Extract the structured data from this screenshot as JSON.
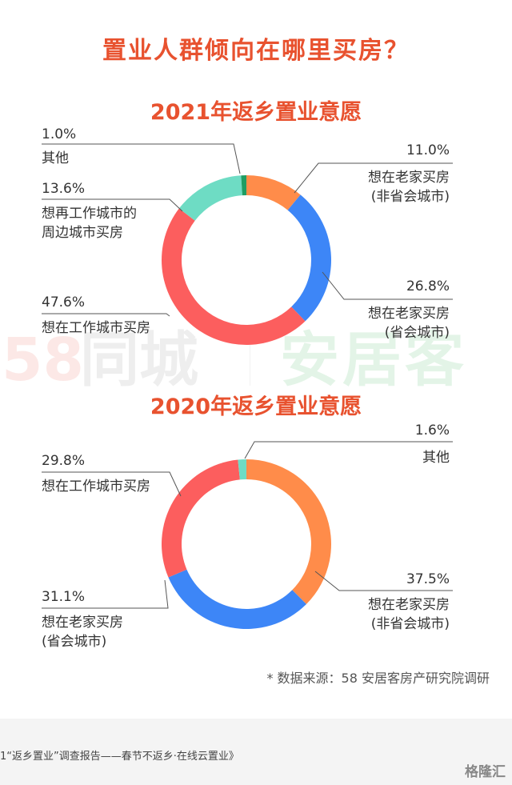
{
  "title": "置业人群倾向在哪里买房？",
  "watermark": {
    "num": "58",
    "tc": "同城",
    "ajk": "安居客"
  },
  "chart_data": [
    {
      "type": "pie",
      "title": "2021年返乡置业意愿",
      "slices": [
        {
          "label1": "想在老家买房",
          "label2": "(非省会城市)",
          "value": 11.0,
          "display": "11.0%",
          "color": "#ff8c4a"
        },
        {
          "label1": "想在老家买房",
          "label2": "(省会城市)",
          "value": 26.8,
          "display": "26.8%",
          "color": "#3d86f7"
        },
        {
          "label1": "想在工作城市买房",
          "label2": "",
          "value": 47.6,
          "display": "47.6%",
          "color": "#fc5e5e"
        },
        {
          "label1": "想再工作城市的",
          "label2": "周边城市买房",
          "value": 13.6,
          "display": "13.6%",
          "color": "#6edcc4"
        },
        {
          "label1": "其他",
          "label2": "",
          "value": 1.0,
          "display": "1.0%",
          "color": "#1f9d63"
        }
      ]
    },
    {
      "type": "pie",
      "title": "2020年返乡置业意愿",
      "slices": [
        {
          "label1": "想在老家买房",
          "label2": "(非省会城市)",
          "value": 37.5,
          "display": "37.5%",
          "color": "#ff8c4a"
        },
        {
          "label1": "想在老家买房",
          "label2": "(省会城市)",
          "value": 31.1,
          "display": "31.1%",
          "color": "#3d86f7"
        },
        {
          "label1": "想在工作城市买房",
          "label2": "",
          "value": 29.8,
          "display": "29.8%",
          "color": "#fc5e5e"
        },
        {
          "label1": "其他",
          "label2": "",
          "value": 1.6,
          "display": "1.6%",
          "color": "#6edcc4"
        }
      ]
    }
  ],
  "source": "* 数据来源：58 安居客房产研究院调研",
  "footer": {
    "text": "1“返乡置业”调查报告——春节不返乡·在线云置业》",
    "logo": "格隆汇"
  }
}
